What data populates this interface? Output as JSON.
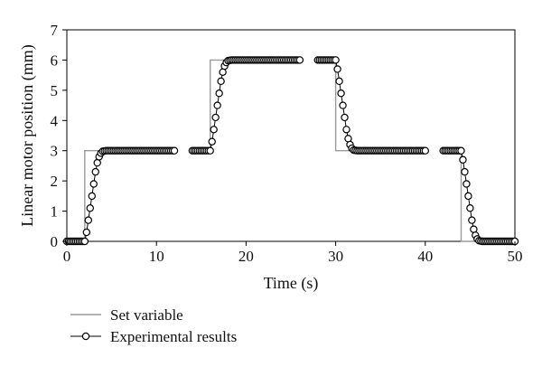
{
  "chart_data": {
    "type": "line",
    "title": "",
    "xlabel": "Time (s)",
    "ylabel": "Linear motor position (mm)",
    "xlim": [
      0,
      50
    ],
    "ylim": [
      0,
      7
    ],
    "xticks": [
      "0",
      "10",
      "20",
      "30",
      "40",
      "50"
    ],
    "yticks": [
      "0",
      "1",
      "2",
      "3",
      "4",
      "5",
      "6",
      "7"
    ],
    "grid": false,
    "legend_position": "bottom-left",
    "series": [
      {
        "name": "Set variable",
        "style": "step-line",
        "color": "#9a9a9a",
        "segments": [
          [
            [
              0,
              0
            ],
            [
              2,
              0
            ],
            [
              2,
              3
            ],
            [
              12,
              3
            ]
          ],
          [
            [
              14,
              3
            ],
            [
              16,
              3
            ],
            [
              16,
              6
            ],
            [
              26,
              6
            ]
          ],
          [
            [
              28,
              6
            ],
            [
              30,
              6
            ],
            [
              30,
              3
            ],
            [
              40,
              3
            ]
          ],
          [
            [
              42,
              3
            ],
            [
              44,
              3
            ],
            [
              44,
              0
            ],
            [
              50,
              0
            ]
          ]
        ]
      },
      {
        "name": "Experimental results",
        "style": "line-with-circle-markers",
        "color": "#000000",
        "segments": [
          [
            [
              0,
              0
            ],
            [
              2,
              0
            ],
            [
              2.2,
              0.3
            ],
            [
              2.4,
              0.7
            ],
            [
              2.6,
              1.1
            ],
            [
              2.8,
              1.5
            ],
            [
              3.0,
              1.9
            ],
            [
              3.2,
              2.3
            ],
            [
              3.4,
              2.6
            ],
            [
              3.6,
              2.8
            ],
            [
              3.8,
              2.92
            ],
            [
              4.0,
              2.98
            ],
            [
              4.4,
              3.0
            ],
            [
              12,
              3.0
            ]
          ],
          [
            [
              14,
              3
            ],
            [
              16,
              3.0
            ],
            [
              16.2,
              3.3
            ],
            [
              16.4,
              3.7
            ],
            [
              16.6,
              4.1
            ],
            [
              16.8,
              4.5
            ],
            [
              17.0,
              4.9
            ],
            [
              17.2,
              5.3
            ],
            [
              17.4,
              5.6
            ],
            [
              17.6,
              5.8
            ],
            [
              17.8,
              5.92
            ],
            [
              18.0,
              5.98
            ],
            [
              18.4,
              6.0
            ],
            [
              26,
              6.0
            ]
          ],
          [
            [
              28,
              6
            ],
            [
              30,
              6.0
            ],
            [
              30.2,
              5.7
            ],
            [
              30.4,
              5.3
            ],
            [
              30.6,
              4.9
            ],
            [
              30.8,
              4.5
            ],
            [
              31.0,
              4.1
            ],
            [
              31.2,
              3.7
            ],
            [
              31.4,
              3.4
            ],
            [
              31.6,
              3.2
            ],
            [
              31.8,
              3.08
            ],
            [
              32.0,
              3.02
            ],
            [
              32.4,
              3.0
            ],
            [
              40,
              3.0
            ]
          ],
          [
            [
              42,
              3
            ],
            [
              44,
              3.0
            ],
            [
              44.2,
              2.7
            ],
            [
              44.4,
              2.3
            ],
            [
              44.6,
              1.9
            ],
            [
              44.8,
              1.5
            ],
            [
              45.0,
              1.1
            ],
            [
              45.2,
              0.7
            ],
            [
              45.4,
              0.4
            ],
            [
              45.6,
              0.2
            ],
            [
              45.8,
              0.08
            ],
            [
              46.0,
              0.02
            ],
            [
              46.4,
              0.0
            ],
            [
              47.0,
              0.0
            ],
            [
              50,
              0.0
            ]
          ]
        ]
      }
    ]
  }
}
